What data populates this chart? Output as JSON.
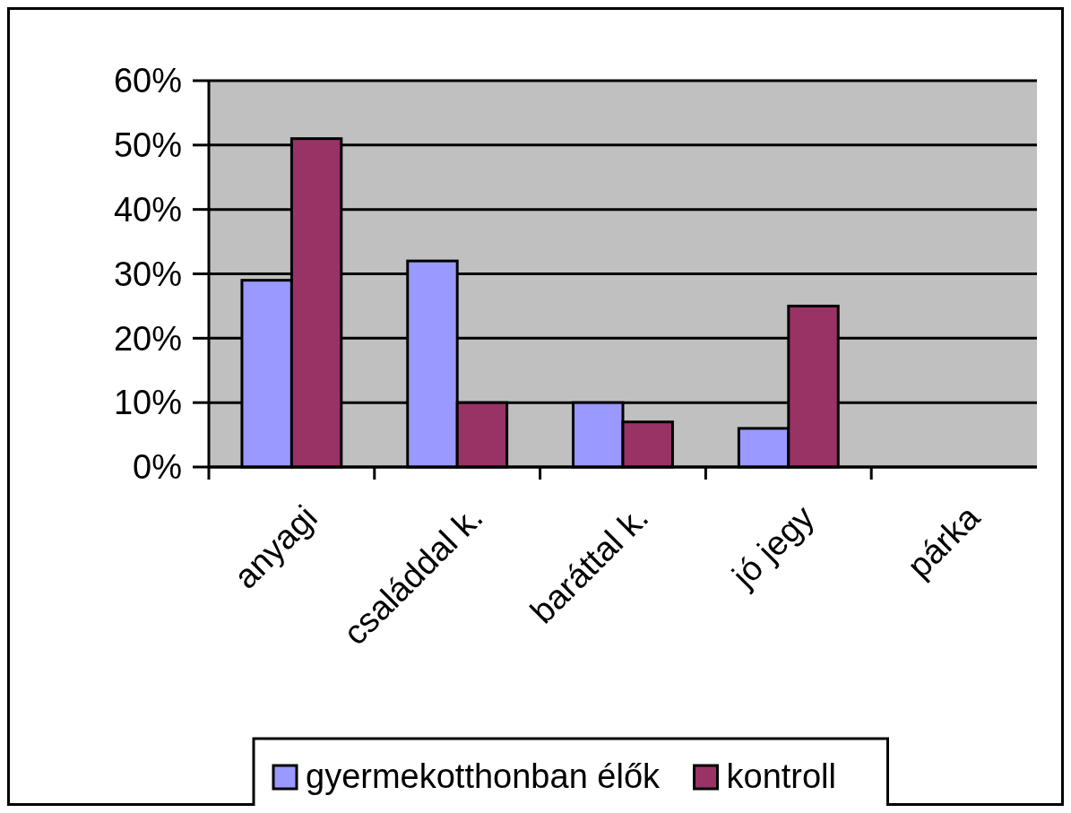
{
  "chart_data": {
    "type": "bar",
    "categories": [
      "anyagi",
      "családdal k.",
      "baráttal k.",
      "jó jegy",
      "párka"
    ],
    "series": [
      {
        "name": "gyermekotthonban élők",
        "color": "#9999ff",
        "values": [
          29,
          32,
          10,
          6,
          null
        ]
      },
      {
        "name": "kontroll",
        "color": "#993366",
        "values": [
          51,
          10,
          7,
          25,
          null
        ]
      }
    ],
    "ylim": [
      0,
      60
    ],
    "yticks": [
      {
        "value": 0,
        "label": "0%"
      },
      {
        "value": 10,
        "label": "10%"
      },
      {
        "value": 20,
        "label": "20%"
      },
      {
        "value": 30,
        "label": "30%"
      },
      {
        "value": 40,
        "label": "40%"
      },
      {
        "value": 50,
        "label": "50%"
      },
      {
        "value": 60,
        "label": "60%"
      }
    ],
    "grid": "y",
    "legend": "bottom"
  }
}
